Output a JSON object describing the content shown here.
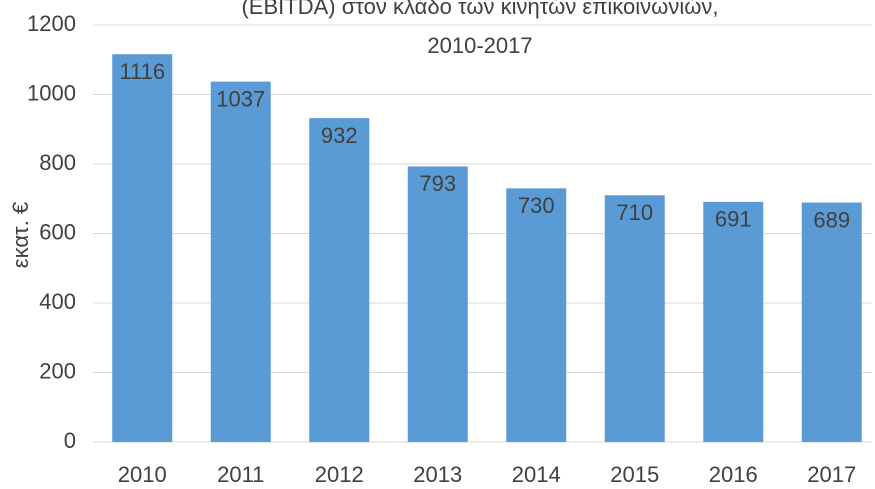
{
  "chart_data": {
    "type": "bar",
    "title": [
      "(EBITDA) στον κλάδο των κινητών επικοινωνιών,",
      "2010-2017"
    ],
    "y_label": "εκατ. €",
    "categories": [
      "2010",
      "2011",
      "2012",
      "2013",
      "2014",
      "2015",
      "2016",
      "2017"
    ],
    "values": [
      1116,
      1037,
      932,
      793,
      730,
      710,
      691,
      689
    ],
    "color": "#5b9bd5",
    "ylim": [
      0,
      1200
    ],
    "yticks": [
      0,
      200,
      400,
      600,
      800,
      1000,
      1200
    ],
    "grid": true
  }
}
